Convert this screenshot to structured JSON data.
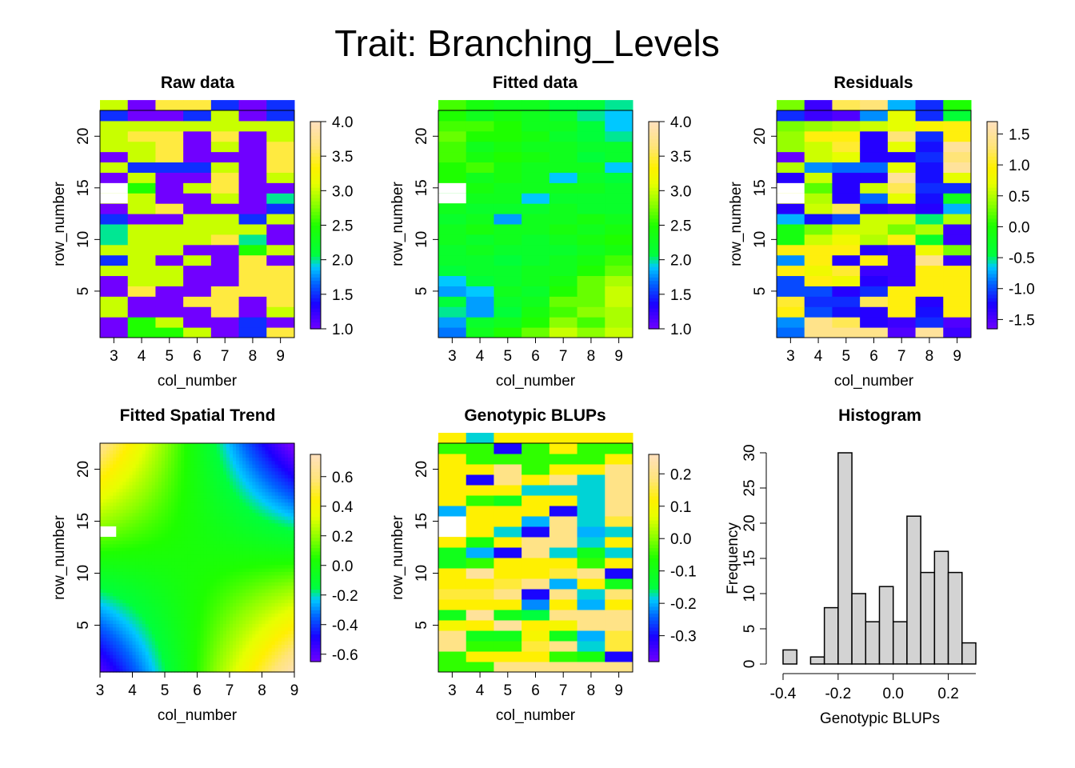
{
  "figure_title": "Trait: Branching_Levels",
  "chart_data": [
    {
      "type": "heatmap",
      "title": "Raw data",
      "xlabel": "col_number",
      "ylabel": "row_number",
      "x_ticks": [
        "3",
        "4",
        "5",
        "6",
        "7",
        "8",
        "9"
      ],
      "y_ticks": [
        "5",
        "10",
        "15",
        "20"
      ],
      "xlim": [
        2.5,
        9.5
      ],
      "ylim": [
        0.5,
        22.5
      ],
      "colorbar_ticks": [
        "1.0",
        "1.5",
        "2.0",
        "2.5",
        "3.0",
        "3.5",
        "4.0"
      ],
      "colorbar_range": [
        1.0,
        4.0
      ],
      "missing_cells": [
        [
          3,
          14
        ]
      ],
      "values": [
        [
          1.0,
          2.5,
          2.5,
          3.0,
          1.0,
          1.5,
          3.5
        ],
        [
          1.0,
          2.5,
          3.0,
          1.0,
          1.0,
          1.5,
          1.0
        ],
        [
          3.0,
          1.0,
          1.0,
          1.0,
          3.5,
          1.0,
          3.0
        ],
        [
          3.0,
          1.0,
          1.0,
          3.5,
          3.5,
          1.0,
          3.5
        ],
        [
          1.0,
          3.5,
          1.0,
          1.0,
          3.5,
          3.5,
          3.5
        ],
        [
          1.0,
          3.0,
          3.0,
          1.0,
          1.0,
          3.5,
          3.5
        ],
        [
          3.0,
          3.0,
          3.0,
          1.0,
          1.0,
          3.5,
          3.5
        ],
        [
          1.5,
          3.0,
          1.0,
          3.0,
          1.0,
          3.5,
          1.0
        ],
        [
          3.0,
          3.0,
          3.0,
          1.0,
          1.0,
          2.5,
          3.0
        ],
        [
          2.0,
          3.0,
          3.0,
          3.0,
          3.5,
          2.0,
          1.0
        ],
        [
          2.0,
          3.0,
          3.0,
          3.0,
          3.0,
          3.0,
          1.0
        ],
        [
          1.5,
          1.0,
          1.0,
          3.0,
          3.0,
          1.5,
          3.0
        ],
        [
          1.0,
          3.0,
          3.5,
          1.0,
          1.0,
          1.0,
          1.5
        ],
        [
          3.0,
          3.0,
          1.0,
          1.0,
          3.0,
          1.0,
          2.0
        ],
        [
          null,
          2.5,
          1.0,
          3.0,
          3.5,
          1.0,
          1.0
        ],
        [
          1.0,
          3.0,
          1.0,
          1.0,
          3.5,
          1.0,
          3.0
        ],
        [
          3.0,
          1.5,
          1.5,
          1.5,
          3.0,
          1.0,
          3.5
        ],
        [
          1.0,
          3.0,
          3.5,
          1.0,
          1.0,
          1.0,
          3.5
        ],
        [
          3.0,
          3.0,
          3.5,
          1.0,
          3.0,
          1.0,
          3.5
        ],
        [
          3.0,
          3.5,
          3.5,
          1.0,
          3.5,
          1.0,
          3.0
        ],
        [
          3.0,
          3.0,
          3.0,
          3.0,
          3.0,
          3.0,
          3.0
        ],
        [
          1.5,
          1.0,
          1.0,
          1.5,
          3.0,
          1.0,
          1.5
        ],
        [
          3.0,
          1.0,
          3.5,
          3.5,
          1.5,
          1.0,
          1.5
        ]
      ]
    },
    {
      "type": "heatmap",
      "title": "Fitted data",
      "xlabel": "col_number",
      "ylabel": "row_number",
      "x_ticks": [
        "3",
        "4",
        "5",
        "6",
        "7",
        "8",
        "9"
      ],
      "y_ticks": [
        "5",
        "10",
        "15",
        "20"
      ],
      "xlim": [
        2.5,
        9.5
      ],
      "ylim": [
        0.5,
        22.5
      ],
      "colorbar_ticks": [
        "1.0",
        "1.5",
        "2.0",
        "2.5",
        "3.0",
        "3.5",
        "4.0"
      ],
      "colorbar_range": [
        1.0,
        4.0
      ],
      "missing_cells": [
        [
          3,
          14
        ]
      ],
      "values": [
        [
          1.7,
          2.3,
          2.5,
          2.7,
          3.0,
          2.8,
          3.0
        ],
        [
          1.8,
          2.2,
          2.3,
          2.5,
          2.8,
          2.6,
          2.9
        ],
        [
          2.0,
          1.8,
          2.1,
          2.4,
          2.6,
          2.8,
          2.9
        ],
        [
          2.1,
          1.8,
          2.2,
          2.3,
          2.7,
          2.7,
          3.0
        ],
        [
          1.8,
          1.9,
          2.3,
          2.2,
          2.5,
          2.7,
          3.0
        ],
        [
          1.9,
          2.1,
          2.2,
          2.3,
          2.4,
          2.7,
          2.9
        ],
        [
          2.1,
          2.2,
          2.2,
          2.3,
          2.3,
          2.5,
          2.7
        ],
        [
          2.2,
          2.2,
          2.1,
          2.2,
          2.3,
          2.4,
          2.6
        ],
        [
          2.2,
          2.3,
          2.2,
          2.2,
          2.2,
          2.3,
          2.4
        ],
        [
          2.3,
          2.2,
          2.3,
          2.2,
          2.3,
          2.4,
          2.5
        ],
        [
          2.3,
          2.4,
          2.3,
          2.3,
          2.4,
          2.3,
          2.4
        ],
        [
          2.2,
          2.3,
          1.8,
          2.3,
          2.3,
          2.4,
          2.3
        ],
        [
          2.3,
          2.2,
          2.2,
          2.2,
          2.3,
          2.2,
          2.2
        ],
        [
          2.4,
          2.3,
          2.3,
          1.9,
          2.2,
          2.2,
          2.2
        ],
        [
          null,
          2.4,
          2.3,
          2.3,
          2.3,
          2.3,
          2.2
        ],
        [
          2.5,
          2.3,
          2.4,
          2.3,
          1.9,
          2.2,
          2.1
        ],
        [
          2.5,
          2.6,
          2.4,
          2.3,
          2.3,
          2.3,
          1.9
        ],
        [
          2.6,
          2.4,
          2.5,
          2.4,
          2.3,
          2.1,
          2.2
        ],
        [
          2.6,
          2.3,
          2.4,
          2.3,
          2.3,
          2.2,
          2.2
        ],
        [
          2.7,
          2.5,
          2.5,
          2.4,
          2.2,
          2.1,
          2.0
        ],
        [
          2.6,
          2.6,
          2.5,
          2.3,
          2.3,
          2.1,
          1.9
        ],
        [
          2.5,
          2.3,
          2.4,
          2.3,
          2.2,
          2.0,
          1.9
        ],
        [
          2.6,
          2.4,
          2.3,
          2.3,
          2.1,
          2.1,
          2.0
        ]
      ]
    },
    {
      "type": "heatmap",
      "title": "Residuals",
      "xlabel": "col_number",
      "ylabel": "row_number",
      "x_ticks": [
        "3",
        "4",
        "5",
        "6",
        "7",
        "8",
        "9"
      ],
      "y_ticks": [
        "5",
        "10",
        "15",
        "20"
      ],
      "xlim": [
        2.5,
        9.5
      ],
      "ylim": [
        0.5,
        22.5
      ],
      "colorbar_ticks": [
        "-1.5",
        "-1.0",
        "-0.5",
        "0.0",
        "0.5",
        "1.0",
        "1.5"
      ],
      "colorbar_range": [
        -1.65,
        1.7
      ],
      "missing_cells": [
        [
          3,
          14
        ]
      ],
      "values": [
        [
          -0.9,
          1.4,
          1.4,
          1.4,
          -1.5,
          1.5,
          -1.4
        ],
        [
          -0.8,
          1.4,
          1.2,
          -1.3,
          -1.4,
          -1.1,
          -1.5
        ],
        [
          1.0,
          -1.0,
          -1.2,
          -1.3,
          1.0,
          -1.2,
          1.0
        ],
        [
          1.1,
          -1.1,
          -1.1,
          1.2,
          1.0,
          -1.3,
          1.0
        ],
        [
          -1.0,
          -1.0,
          -1.3,
          -1.1,
          1.0,
          1.0,
          1.0
        ],
        [
          -1.0,
          1.0,
          0.8,
          -1.3,
          -1.4,
          1.0,
          1.0
        ],
        [
          1.0,
          0.8,
          1.1,
          -1.4,
          -1.4,
          1.0,
          1.0
        ],
        [
          -0.8,
          1.0,
          -1.3,
          1.0,
          -1.4,
          1.4,
          -1.4
        ],
        [
          1.0,
          1.0,
          1.0,
          -1.3,
          -1.4,
          0.8,
          0.3
        ],
        [
          -0.1,
          0.6,
          0.8,
          0.5,
          1.0,
          -0.3,
          -1.4
        ],
        [
          -0.1,
          0.3,
          0.6,
          0.6,
          0.3,
          0.5,
          -1.4
        ],
        [
          -0.7,
          -1.2,
          -1.0,
          0.6,
          0.6,
          -0.5,
          0.5
        ],
        [
          -1.3,
          0.6,
          1.2,
          -1.3,
          -1.4,
          -1.3,
          -0.7
        ],
        [
          0.7,
          0.5,
          -1.3,
          -0.9,
          0.7,
          -1.2,
          -0.2
        ],
        [
          null,
          0.2,
          -1.3,
          0.6,
          1.2,
          -1.1,
          -1.1
        ],
        [
          -1.3,
          0.6,
          -1.3,
          -1.3,
          1.5,
          -1.2,
          0.7
        ],
        [
          0.5,
          -0.8,
          -0.9,
          -0.9,
          0.7,
          -1.2,
          1.5
        ],
        [
          -1.6,
          0.6,
          0.7,
          -1.3,
          -1.3,
          -1.1,
          1.3
        ],
        [
          0.4,
          0.6,
          1.1,
          -1.3,
          0.7,
          -1.2,
          1.5
        ],
        [
          0.4,
          1.0,
          1.0,
          -1.3,
          1.3,
          -1.1,
          1.0
        ],
        [
          0.3,
          0.4,
          0.5,
          0.6,
          0.7,
          0.9,
          1.0
        ],
        [
          -1.1,
          -1.4,
          -1.5,
          -0.8,
          0.7,
          -1.1,
          -0.4
        ],
        [
          0.3,
          -1.4,
          1.2,
          1.3,
          -0.7,
          -1.1,
          0.0
        ]
      ]
    },
    {
      "type": "heatmap",
      "title": "Fitted Spatial Trend",
      "xlabel": "col_number",
      "ylabel": "row_number",
      "x_ticks": [
        "3",
        "4",
        "5",
        "6",
        "7",
        "8",
        "9"
      ],
      "y_ticks": [
        "5",
        "10",
        "15",
        "20"
      ],
      "xlim": [
        3,
        9
      ],
      "ylim": [
        0.5,
        22.5
      ],
      "colorbar_ticks": [
        "-0.6",
        "-0.4",
        "-0.2",
        "0.0",
        "0.2",
        "0.4",
        "0.6"
      ],
      "colorbar_range": [
        -0.65,
        0.75
      ],
      "missing_cells": [
        [
          3,
          14
        ]
      ],
      "trend": {
        "x_center": 5.8,
        "y_center": 11.5,
        "scale": 0.75,
        "offset": 0.02
      }
    },
    {
      "type": "heatmap",
      "title": "Genotypic BLUPs",
      "xlabel": "col_number",
      "ylabel": "row_number",
      "x_ticks": [
        "3",
        "4",
        "5",
        "6",
        "7",
        "8",
        "9"
      ],
      "y_ticks": [
        "5",
        "10",
        "15",
        "20"
      ],
      "xlim": [
        2.5,
        9.5
      ],
      "ylim": [
        0.5,
        22.5
      ],
      "colorbar_ticks": [
        "-0.3",
        "-0.2",
        "-0.1",
        "0.0",
        "0.1",
        "0.2"
      ],
      "colorbar_range": [
        -0.38,
        0.26
      ],
      "missing_cells": [
        [
          3,
          14
        ]
      ],
      "values": [
        [
          -0.05,
          -0.05,
          0.2,
          0.2,
          0.2,
          0.2,
          0.2
        ],
        [
          -0.05,
          0.12,
          0.12,
          0.12,
          -0.05,
          -0.08,
          -0.3
        ],
        [
          0.2,
          -0.05,
          -0.05,
          0.15,
          0.2,
          -0.18,
          0.15
        ],
        [
          0.2,
          -0.1,
          -0.1,
          0.1,
          -0.1,
          -0.2,
          0.15
        ],
        [
          0.1,
          0.12,
          0.22,
          0.12,
          0.1,
          0.2,
          0.2
        ],
        [
          -0.1,
          0.22,
          -0.1,
          -0.15,
          0.2,
          0.2,
          0.2
        ],
        [
          0.12,
          0.12,
          0.12,
          -0.22,
          0.12,
          -0.2,
          0.12
        ],
        [
          0.15,
          0.15,
          0.2,
          -0.3,
          0.2,
          -0.18,
          0.18
        ],
        [
          0.12,
          0.12,
          0.15,
          0.2,
          -0.2,
          0.12,
          -0.1
        ],
        [
          0.12,
          0.22,
          0.12,
          0.12,
          0.15,
          0.2,
          -0.3
        ],
        [
          -0.1,
          -0.05,
          0.12,
          0.12,
          0.12,
          -0.05,
          0.12
        ],
        [
          -0.1,
          -0.2,
          -0.3,
          0.2,
          -0.18,
          -0.1,
          -0.18
        ],
        [
          0.12,
          -0.08,
          0.12,
          0.2,
          0.2,
          -0.18,
          0.12
        ],
        [
          0.15,
          0.12,
          -0.18,
          -0.3,
          0.2,
          -0.2,
          -0.18
        ],
        [
          null,
          0.12,
          0.12,
          -0.2,
          0.2,
          -0.18,
          0.15
        ],
        [
          -0.2,
          0.12,
          0.12,
          0.12,
          -0.3,
          -0.18,
          0.2
        ],
        [
          0.12,
          -0.05,
          -0.1,
          0.12,
          0.12,
          -0.18,
          0.2
        ],
        [
          0.12,
          0.12,
          0.12,
          -0.18,
          -0.18,
          -0.18,
          0.2
        ],
        [
          0.12,
          -0.3,
          0.2,
          0.12,
          0.2,
          -0.18,
          0.2
        ],
        [
          0.12,
          0.12,
          0.2,
          -0.05,
          0.12,
          0.12,
          0.2
        ],
        [
          0.12,
          -0.05,
          -0.05,
          -0.05,
          -0.05,
          -0.05,
          0.12
        ],
        [
          -0.05,
          -0.05,
          -0.3,
          -0.05,
          0.12,
          -0.05,
          -0.05
        ],
        [
          0.12,
          -0.18,
          0.12,
          0.12,
          0.12,
          0.12,
          0.12
        ]
      ]
    },
    {
      "type": "bar",
      "subtype": "histogram",
      "title": "Histogram",
      "xlabel": "Genotypic BLUPs",
      "ylabel": "Frequency",
      "x_ticks": [
        "-0.4",
        "-0.2",
        "0.0",
        "0.2"
      ],
      "y_ticks": [
        "0",
        "5",
        "10",
        "15",
        "20",
        "25",
        "30"
      ],
      "xlim": [
        -0.4,
        0.3
      ],
      "ylim": [
        0,
        30
      ],
      "bins": [
        -0.4,
        -0.35,
        -0.3,
        -0.25,
        -0.2,
        -0.15,
        -0.1,
        -0.05,
        0.0,
        0.05,
        0.1,
        0.15,
        0.2,
        0.25,
        0.3
      ],
      "counts": [
        2,
        0,
        1,
        8,
        30,
        10,
        6,
        11,
        6,
        21,
        13,
        16,
        13,
        3
      ]
    }
  ]
}
